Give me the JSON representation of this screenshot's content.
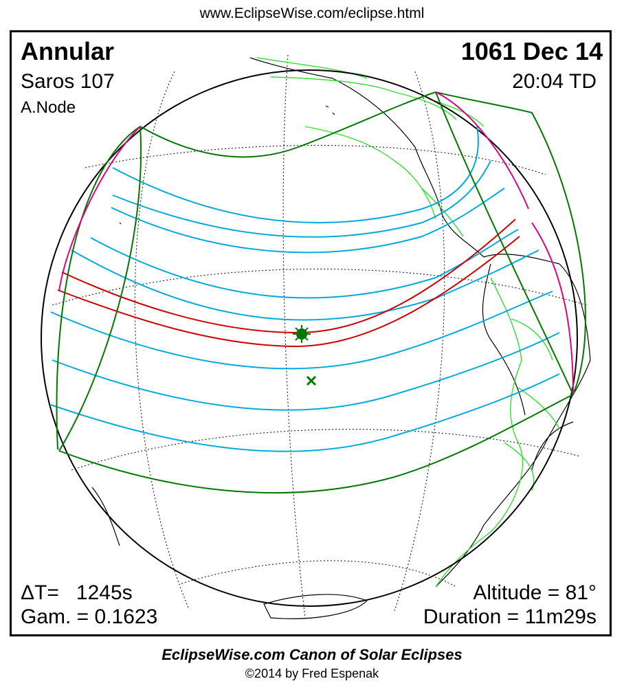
{
  "header": {
    "url": "www.EclipseWise.com/eclipse.html"
  },
  "eclipse": {
    "type": "Annular",
    "saros": "Saros 107",
    "node": "A.Node",
    "date": "1061 Dec 14",
    "time": "20:04 TD",
    "delta_t": "ΔT=   1245s",
    "gamma": "Gam. = 0.1623",
    "altitude": "Altitude = 81°",
    "duration": "Duration = 11m29s"
  },
  "footer": {
    "title": "EclipseWise.com Canon of Solar Eclipses",
    "copyright": "©2014 by Fred Espenak"
  },
  "colors": {
    "central_path": "#cc0000",
    "partial_limits": "#00aadd",
    "outer_limits": "#007700",
    "rise_set": "#dd0088",
    "borders": "#33dd33",
    "coastline": "#000000",
    "grid": "#000000"
  },
  "markers": [
    "greatest-eclipse-star",
    "sub-solar-point-cross"
  ]
}
